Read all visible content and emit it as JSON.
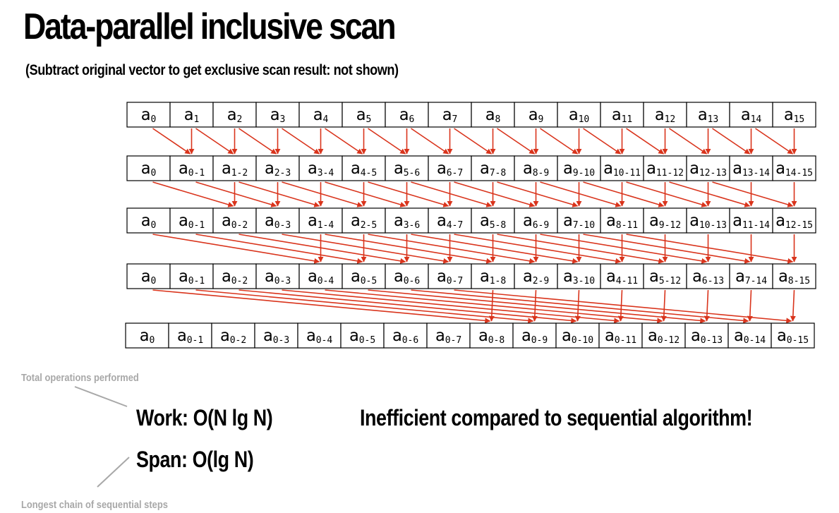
{
  "title": "Data-parallel inclusive scan",
  "subtitle": "(Subtract original vector to get exclusive scan result: not shown)",
  "rows": [
    [
      [
        "a",
        "0"
      ],
      [
        "a",
        "1"
      ],
      [
        "a",
        "2"
      ],
      [
        "a",
        "3"
      ],
      [
        "a",
        "4"
      ],
      [
        "a",
        "5"
      ],
      [
        "a",
        "6"
      ],
      [
        "a",
        "7"
      ],
      [
        "a",
        "8"
      ],
      [
        "a",
        "9"
      ],
      [
        "a",
        "10"
      ],
      [
        "a",
        "11"
      ],
      [
        "a",
        "12"
      ],
      [
        "a",
        "13"
      ],
      [
        "a",
        "14"
      ],
      [
        "a",
        "15"
      ]
    ],
    [
      [
        "a",
        "0"
      ],
      [
        "a",
        "0-1"
      ],
      [
        "a",
        "1-2"
      ],
      [
        "a",
        "2-3"
      ],
      [
        "a",
        "3-4"
      ],
      [
        "a",
        "4-5"
      ],
      [
        "a",
        "5-6"
      ],
      [
        "a",
        "6-7"
      ],
      [
        "a",
        "7-8"
      ],
      [
        "a",
        "8-9"
      ],
      [
        "a",
        "9-10"
      ],
      [
        "a",
        "10-11"
      ],
      [
        "a",
        "11-12"
      ],
      [
        "a",
        "12-13"
      ],
      [
        "a",
        "13-14"
      ],
      [
        "a",
        "14-15"
      ]
    ],
    [
      [
        "a",
        "0"
      ],
      [
        "a",
        "0-1"
      ],
      [
        "a",
        "0-2"
      ],
      [
        "a",
        "0-3"
      ],
      [
        "a",
        "1-4"
      ],
      [
        "a",
        "2-5"
      ],
      [
        "a",
        "3-6"
      ],
      [
        "a",
        "4-7"
      ],
      [
        "a",
        "5-8"
      ],
      [
        "a",
        "6-9"
      ],
      [
        "a",
        "7-10"
      ],
      [
        "a",
        "8-11"
      ],
      [
        "a",
        "9-12"
      ],
      [
        "a",
        "10-13"
      ],
      [
        "a",
        "11-14"
      ],
      [
        "a",
        "12-15"
      ]
    ],
    [
      [
        "a",
        "0"
      ],
      [
        "a",
        "0-1"
      ],
      [
        "a",
        "0-2"
      ],
      [
        "a",
        "0-3"
      ],
      [
        "a",
        "0-4"
      ],
      [
        "a",
        "0-5"
      ],
      [
        "a",
        "0-6"
      ],
      [
        "a",
        "0-7"
      ],
      [
        "a",
        "1-8"
      ],
      [
        "a",
        "2-9"
      ],
      [
        "a",
        "3-10"
      ],
      [
        "a",
        "4-11"
      ],
      [
        "a",
        "5-12"
      ],
      [
        "a",
        "6-13"
      ],
      [
        "a",
        "7-14"
      ],
      [
        "a",
        "8-15"
      ]
    ],
    [
      [
        "a",
        "0"
      ],
      [
        "a",
        "0-1"
      ],
      [
        "a",
        "0-2"
      ],
      [
        "a",
        "0-3"
      ],
      [
        "a",
        "0-4"
      ],
      [
        "a",
        "0-5"
      ],
      [
        "a",
        "0-6"
      ],
      [
        "a",
        "0-7"
      ],
      [
        "a",
        "0-8"
      ],
      [
        "a",
        "0-9"
      ],
      [
        "a",
        "0-10"
      ],
      [
        "a",
        "0-11"
      ],
      [
        "a",
        "0-12"
      ],
      [
        "a",
        "0-13"
      ],
      [
        "a",
        "0-14"
      ],
      [
        "a",
        "0-15"
      ]
    ]
  ],
  "offsets": [
    1,
    2,
    4,
    8
  ],
  "colors": {
    "arrow": "#d9341c",
    "note": "#a8a8a8",
    "box": "#000000"
  },
  "notes": {
    "total_ops": "Total operations performed",
    "work": "Work: O(N lg N)",
    "span": "Span: O(lg N)",
    "longest_chain": "Longest chain of sequential steps",
    "inefficient": "Inefficient compared to sequential algorithm!"
  }
}
